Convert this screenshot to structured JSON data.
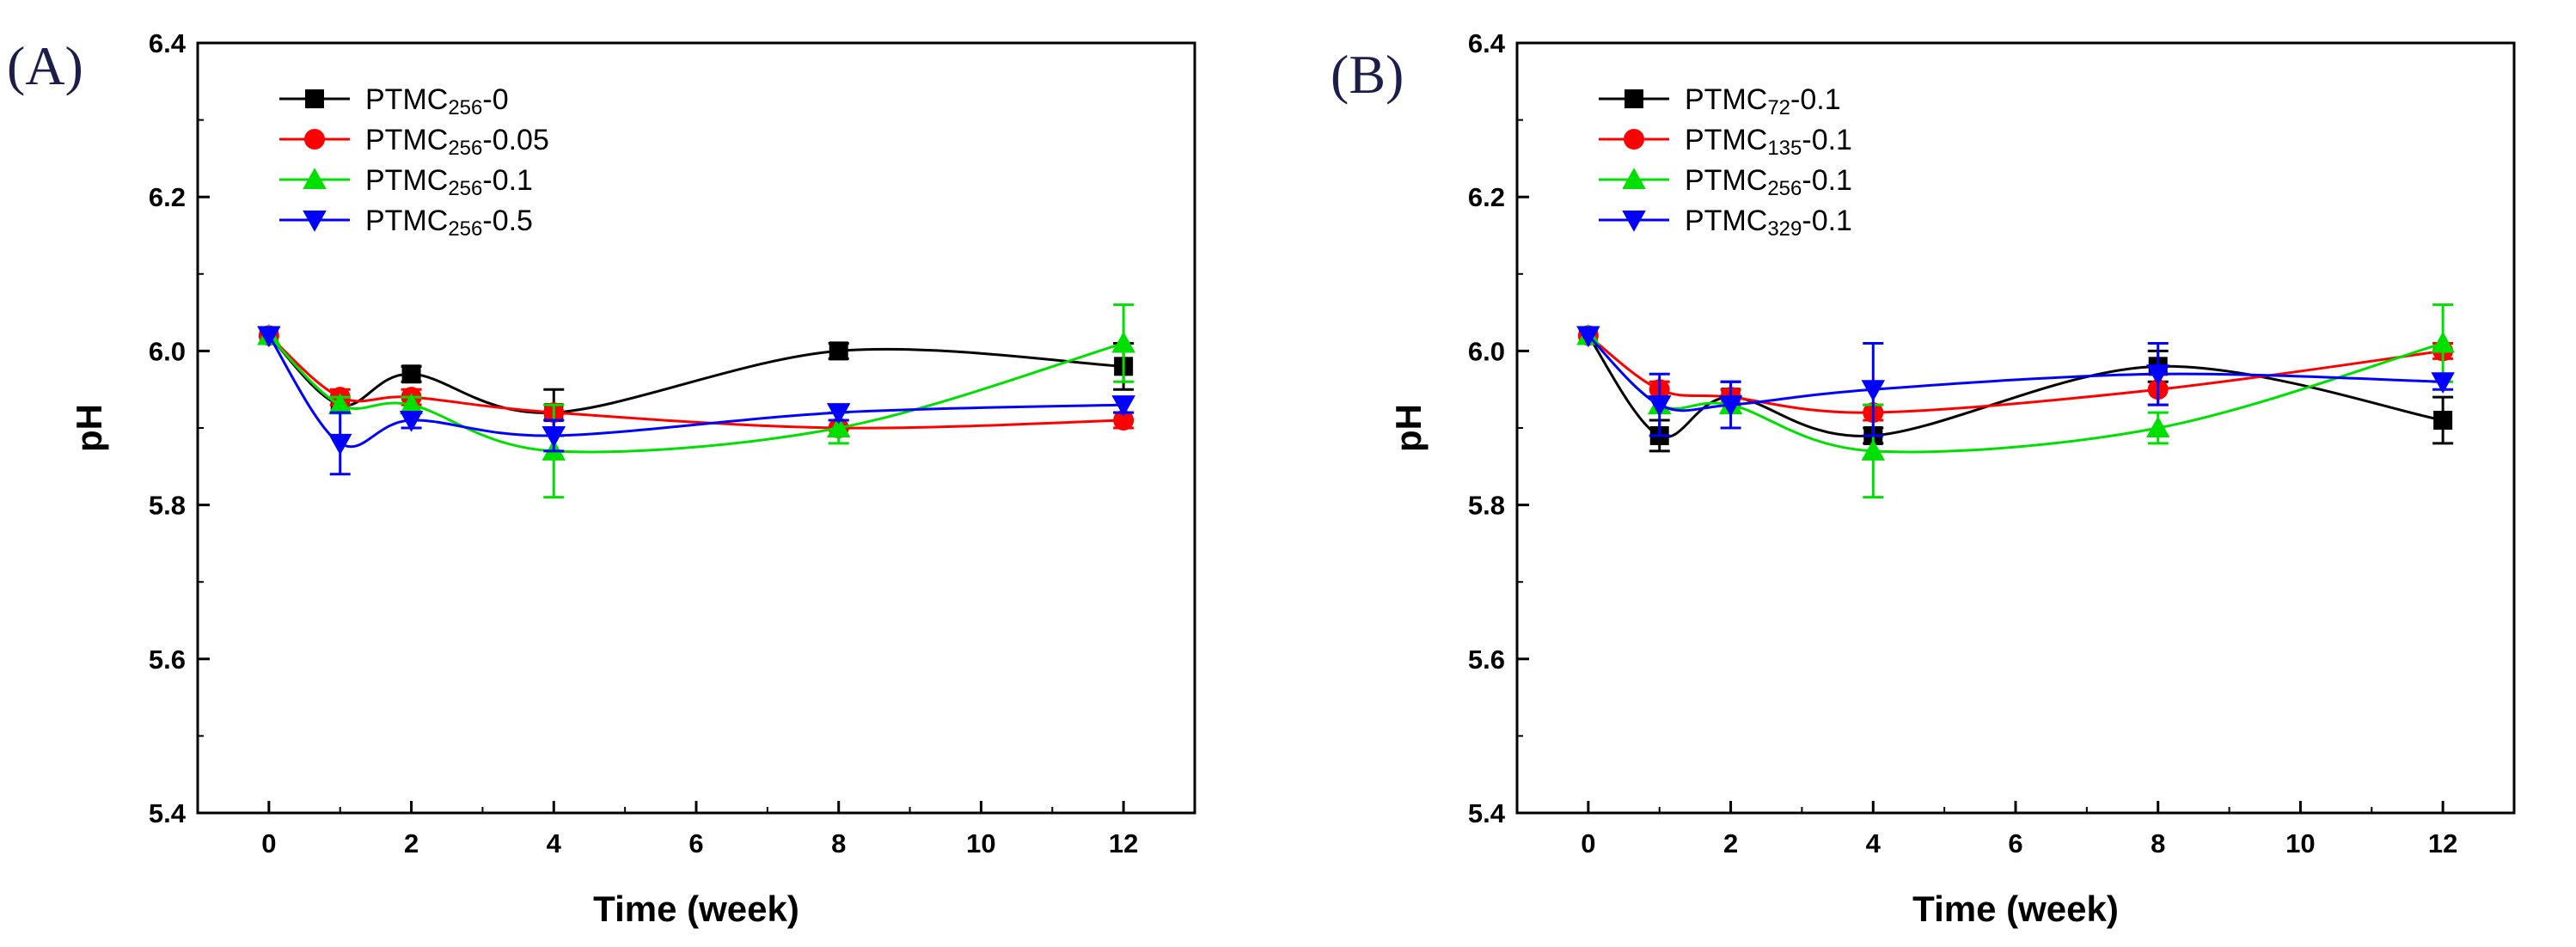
{
  "chart_data": [
    {
      "type": "line",
      "panel_label": "(A)",
      "xlabel": "Time (week)",
      "ylabel": "pH",
      "xlim": [
        -1,
        13
      ],
      "ylim": [
        5.4,
        6.4
      ],
      "xticks": [
        "0",
        "2",
        "4",
        "6",
        "8",
        "10",
        "12"
      ],
      "yticks": [
        "5.4",
        "5.6",
        "5.8",
        "6.0",
        "6.2",
        "6.4"
      ],
      "legend_position": "top-left",
      "series": [
        {
          "name_main": "PTMC",
          "name_sub": "256",
          "name_suffix": "-0",
          "color": "#000000",
          "marker": "square",
          "x": [
            0,
            1,
            2,
            4,
            8,
            12
          ],
          "y": [
            6.02,
            5.93,
            5.97,
            5.92,
            6.0,
            5.98
          ],
          "err": [
            0,
            0.01,
            0.01,
            0.03,
            0.01,
            0.03
          ]
        },
        {
          "name_main": "PTMC",
          "name_sub": "256",
          "name_suffix": "-0.05",
          "color": "#ff0000",
          "marker": "circle",
          "x": [
            0,
            1,
            2,
            4,
            8,
            12
          ],
          "y": [
            6.02,
            5.94,
            5.94,
            5.92,
            5.9,
            5.91
          ],
          "err": [
            0,
            0.01,
            0.01,
            0.01,
            0.01,
            0.01
          ]
        },
        {
          "name_main": "PTMC",
          "name_sub": "256",
          "name_suffix": "-0.1",
          "color": "#00e000",
          "marker": "triangle-up",
          "x": [
            0,
            1,
            2,
            4,
            8,
            12
          ],
          "y": [
            6.02,
            5.93,
            5.93,
            5.87,
            5.9,
            6.01
          ],
          "err": [
            0,
            0.01,
            0.01,
            0.06,
            0.02,
            0.05
          ]
        },
        {
          "name_main": "PTMC",
          "name_sub": "256",
          "name_suffix": "-0.5",
          "color": "#0000ff",
          "marker": "triangle-down",
          "x": [
            0,
            1,
            2,
            4,
            8,
            12
          ],
          "y": [
            6.02,
            5.88,
            5.91,
            5.89,
            5.92,
            5.93
          ],
          "err": [
            0,
            0.04,
            0.01,
            0.02,
            0.01,
            0.01
          ]
        }
      ]
    },
    {
      "type": "line",
      "panel_label": "(B)",
      "xlabel": "Time (week)",
      "ylabel": "pH",
      "xlim": [
        -1,
        13
      ],
      "ylim": [
        5.4,
        6.4
      ],
      "xticks": [
        "0",
        "2",
        "4",
        "6",
        "8",
        "10",
        "12"
      ],
      "yticks": [
        "5.4",
        "5.6",
        "5.8",
        "6.0",
        "6.2",
        "6.4"
      ],
      "legend_position": "top-left",
      "series": [
        {
          "name_main": "PTMC",
          "name_sub": "72",
          "name_suffix": "-0.1",
          "color": "#000000",
          "marker": "square",
          "x": [
            0,
            1,
            2,
            4,
            8,
            12
          ],
          "y": [
            6.02,
            5.89,
            5.94,
            5.89,
            5.98,
            5.91
          ],
          "err": [
            0,
            0.02,
            0.02,
            0.01,
            0.02,
            0.03
          ]
        },
        {
          "name_main": "PTMC",
          "name_sub": "135",
          "name_suffix": "-0.1",
          "color": "#ff0000",
          "marker": "circle",
          "x": [
            0,
            1,
            2,
            4,
            8,
            12
          ],
          "y": [
            6.02,
            5.95,
            5.94,
            5.92,
            5.95,
            6.0
          ],
          "err": [
            0,
            0.01,
            0.01,
            0.01,
            0.02,
            0.01
          ]
        },
        {
          "name_main": "PTMC",
          "name_sub": "256",
          "name_suffix": "-0.1",
          "color": "#00e000",
          "marker": "triangle-up",
          "x": [
            0,
            1,
            2,
            4,
            8,
            12
          ],
          "y": [
            6.02,
            5.93,
            5.93,
            5.87,
            5.9,
            6.01
          ],
          "err": [
            0,
            0.01,
            0.01,
            0.06,
            0.02,
            0.05
          ]
        },
        {
          "name_main": "PTMC",
          "name_sub": "329",
          "name_suffix": "-0.1",
          "color": "#0000ff",
          "marker": "triangle-down",
          "x": [
            0,
            1,
            2,
            4,
            8,
            12
          ],
          "y": [
            6.02,
            5.93,
            5.93,
            5.95,
            5.97,
            5.96
          ],
          "err": [
            0,
            0.04,
            0.03,
            0.06,
            0.04,
            0.01
          ]
        }
      ]
    }
  ]
}
